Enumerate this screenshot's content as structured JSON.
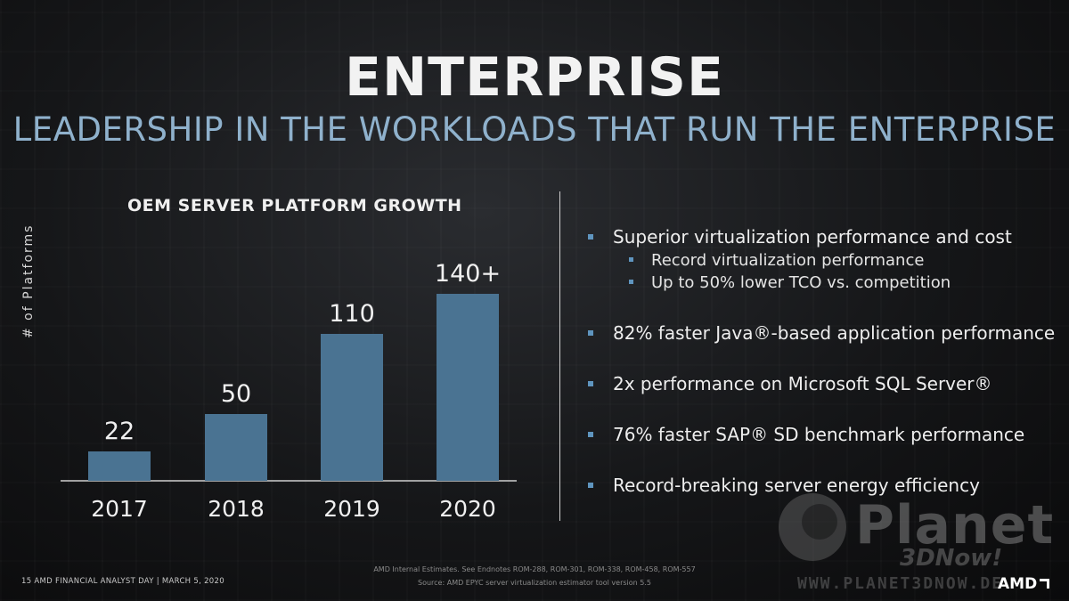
{
  "header": {
    "title": "ENTERPRISE",
    "subtitle": "LEADERSHIP IN THE WORKLOADS THAT RUN THE ENTERPRISE"
  },
  "chart_data": {
    "type": "bar",
    "title": "OEM SERVER PLATFORM GROWTH",
    "ylabel": "# of Platforms",
    "xlabel": "",
    "categories": [
      "2017",
      "2018",
      "2019",
      "2020"
    ],
    "values": [
      22,
      50,
      110,
      140
    ],
    "data_labels": [
      "22",
      "50",
      "110",
      "140+"
    ],
    "ylim": [
      0,
      150
    ],
    "bar_color": "#4a7392"
  },
  "bullets": [
    {
      "text": "Superior virtualization performance and cost",
      "sub": [
        "Record virtualization performance",
        "Up to 50% lower TCO vs. competition"
      ]
    },
    {
      "text": "82% faster Java®-based application performance",
      "sub": []
    },
    {
      "text": "2x performance on Microsoft SQL Server®",
      "sub": []
    },
    {
      "text": "76% faster SAP® SD benchmark performance",
      "sub": []
    },
    {
      "text": "Record-breaking server energy efficiency",
      "sub": []
    }
  ],
  "footer": {
    "left": "15     AMD FINANCIAL ANALYST DAY   |   MARCH 5, 2020",
    "note1": "AMD Internal Estimates. See Endnotes ROM-288, ROM-301, ROM-338, ROM-458, ROM-557",
    "note2": "Source: AMD EPYC server virtualization estimator tool version 5.5",
    "logo": "AMD"
  },
  "watermark": {
    "name": "Planet",
    "sub": "3DNow!",
    "url": "WWW.PLANET3DNOW.DE"
  },
  "colors": {
    "accent": "#5f95bf",
    "subtitle": "#8fb1cc"
  }
}
